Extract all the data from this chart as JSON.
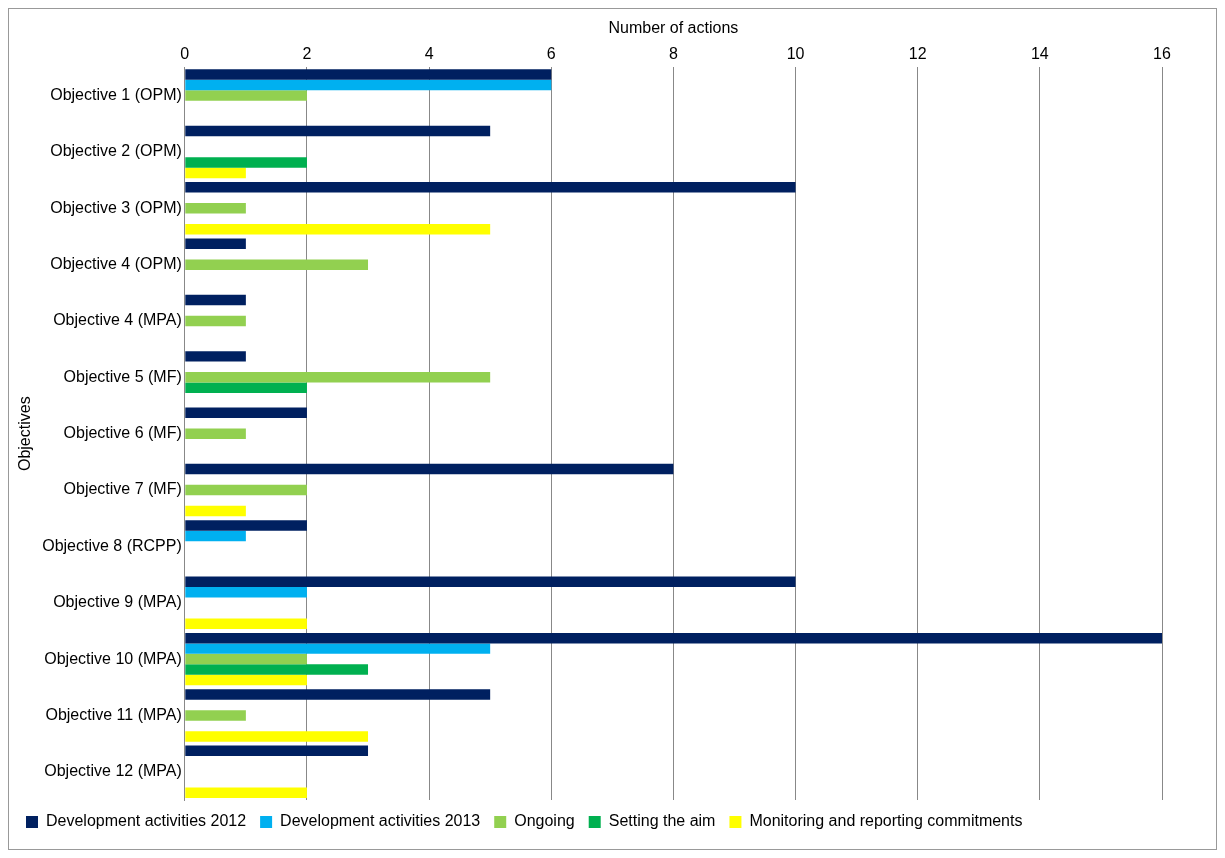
{
  "chart_data": {
    "type": "bar",
    "orientation": "horizontal",
    "xlabel": "Number of actions",
    "ylabel": "Objectives",
    "categories": [
      "Objective 1 (OPM)",
      "Objective 2 (OPM)",
      "Objective 3 (OPM)",
      "Objective 4 (OPM)",
      "Objective 4 (MPA)",
      "Objective 5 (MF)",
      "Objective 6 (MF)",
      "Objective 7 (MF)",
      "Objective 8 (RCPP)",
      "Objective 9 (MPA)",
      "Objective 10 (MPA)",
      "Objective 11 (MPA)",
      "Objective 12 (MPA)"
    ],
    "series": [
      {
        "name": "Development activities 2012",
        "color": "#002060",
        "values": [
          6,
          5,
          10,
          1,
          1,
          1,
          2,
          8,
          2,
          10,
          16,
          5,
          3
        ]
      },
      {
        "name": "Development activities 2013",
        "color": "#00b0f0",
        "values": [
          6,
          0,
          0,
          0,
          0,
          0,
          0,
          0,
          1,
          2,
          5,
          0,
          0
        ]
      },
      {
        "name": "Ongoing",
        "color": "#92d050",
        "values": [
          2,
          0,
          1,
          3,
          1,
          5,
          1,
          2,
          0,
          0,
          2,
          1,
          0
        ]
      },
      {
        "name": "Setting the aim",
        "color": "#00b050",
        "values": [
          0,
          2,
          0,
          0,
          0,
          2,
          0,
          0,
          0,
          0,
          3,
          0,
          0
        ]
      },
      {
        "name": "Monitoring and reporting commitments",
        "color": "#ffff00",
        "values": [
          0,
          1,
          5,
          0,
          0,
          0,
          0,
          1,
          0,
          2,
          2,
          3,
          2
        ]
      }
    ],
    "xlim": [
      0,
      16
    ],
    "xticks": [
      0,
      2,
      4,
      6,
      8,
      10,
      12,
      14,
      16
    ],
    "grid": "x",
    "legend": "bottom"
  }
}
